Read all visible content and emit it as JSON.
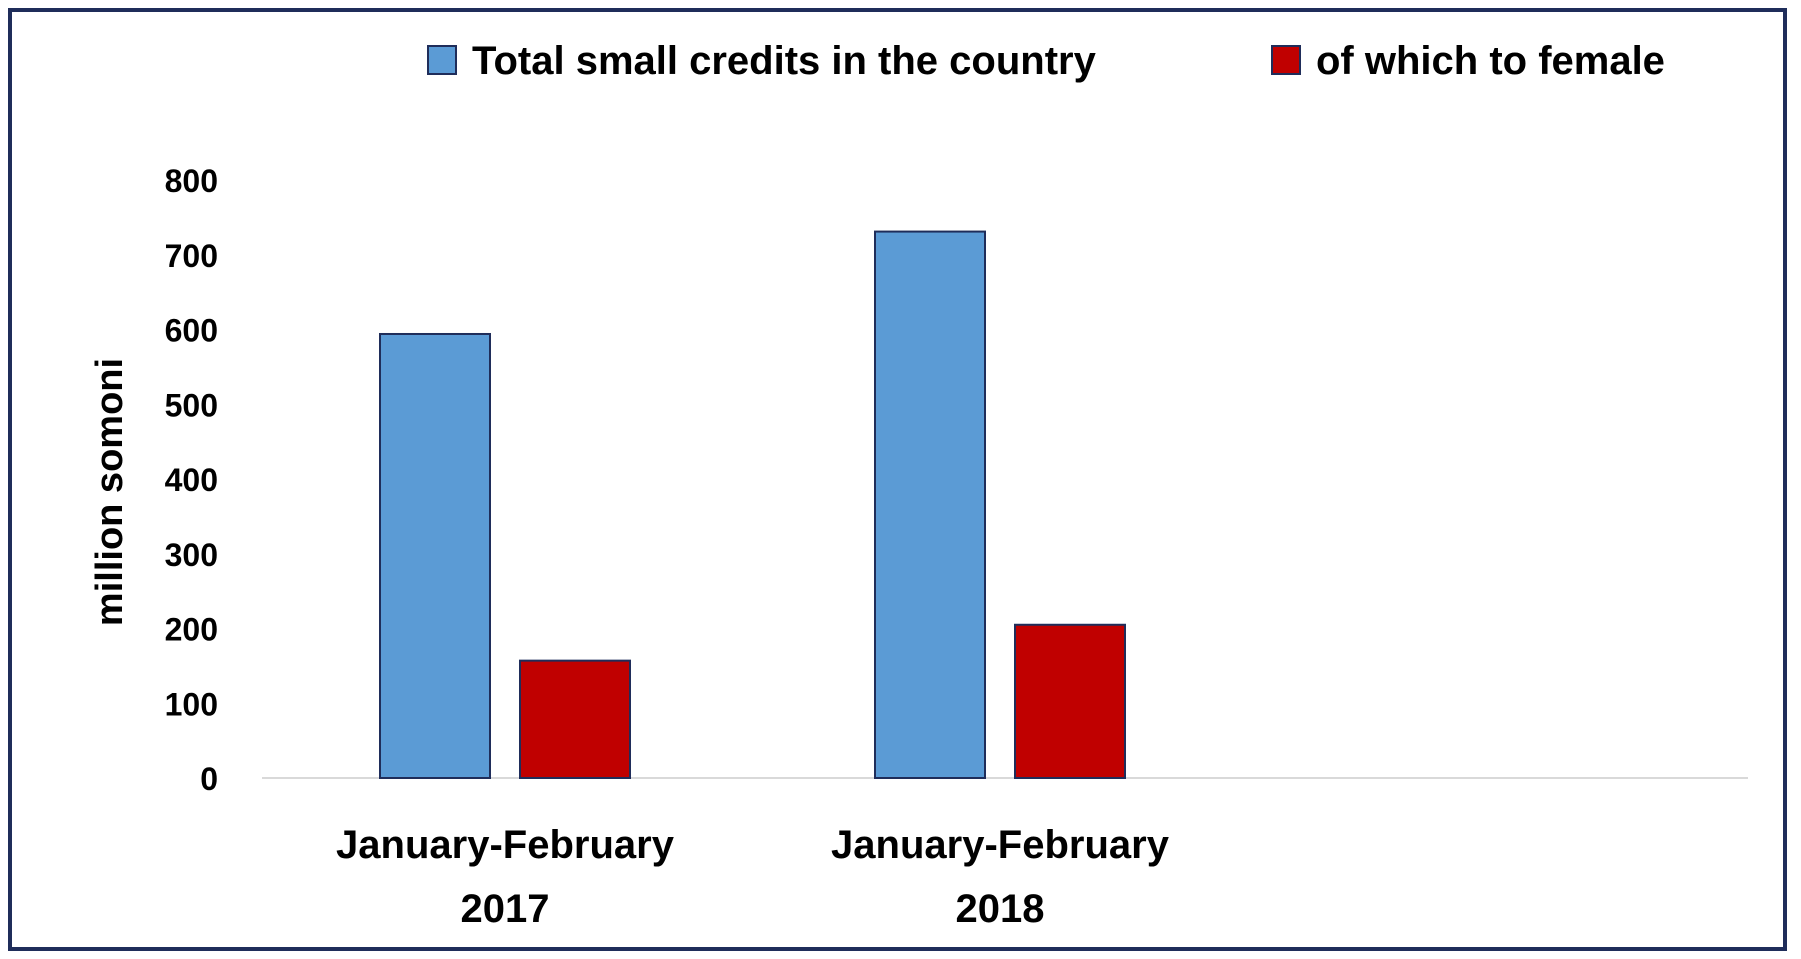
{
  "chart_data": {
    "type": "bar",
    "categories": [
      [
        "January-February",
        "2017"
      ],
      [
        "January-February",
        "2018"
      ]
    ],
    "series": [
      {
        "name": "Total small credits in the country",
        "color": "#5b9bd5",
        "values": [
          594,
          731
        ]
      },
      {
        "name": "of which to female",
        "color": "#c00000",
        "values": [
          157,
          205
        ]
      }
    ],
    "ylabel": "million somoni",
    "ylim": [
      0,
      800
    ],
    "yticks": [
      0,
      100,
      200,
      300,
      400,
      500,
      600,
      700,
      800
    ],
    "grid": false,
    "legend_position": "top"
  }
}
